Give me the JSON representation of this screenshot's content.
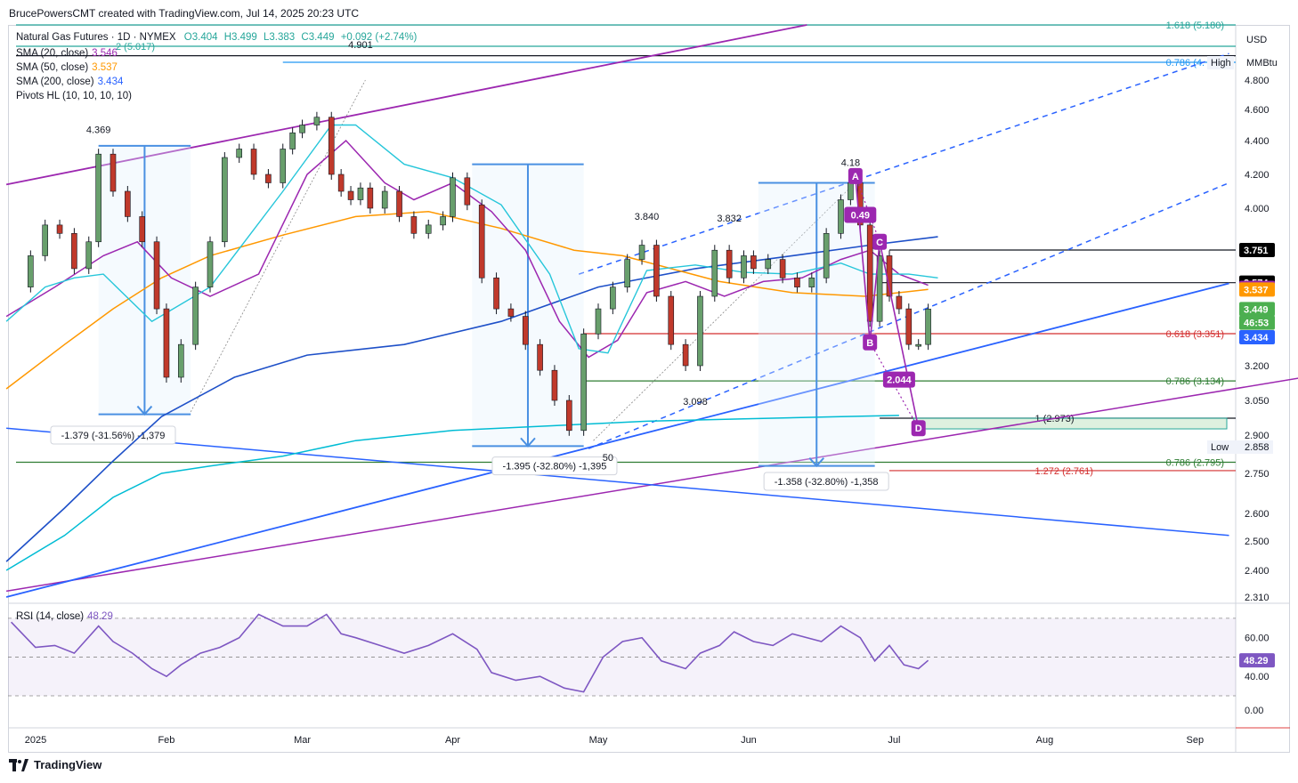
{
  "header": {
    "created_by": "BrucePowersCMT created with TradingView.com, Jul 14, 2025 20:23 UTC"
  },
  "symbol": {
    "name": "Natural Gas Futures · 1D · NYMEX",
    "open": "O3.404",
    "high": "H3.499",
    "low": "L3.383",
    "close": "C3.449",
    "change": "+0.092 (+2.74%)"
  },
  "indicators": [
    {
      "label": "SMA (20, close)",
      "value": "3.546",
      "color": "#9c27b0"
    },
    {
      "label": "SMA (50, close)",
      "value": "3.537",
      "color": "#ff9800"
    },
    {
      "label": "SMA (200, close)",
      "value": "3.434",
      "color": "#2962ff"
    },
    {
      "label": "Pivots HL (10, 10, 10, 10)",
      "value": "",
      "color": "#131722"
    }
  ],
  "axis": {
    "currency": "USD",
    "unit": "MMBtu",
    "ticks": [
      {
        "label": "4.800",
        "v": 4.8
      },
      {
        "label": "4.600",
        "v": 4.6
      },
      {
        "label": "4.400",
        "v": 4.4
      },
      {
        "label": "4.200",
        "v": 4.2
      },
      {
        "label": "4.000",
        "v": 4.0
      },
      {
        "label": "3.200",
        "v": 3.2
      },
      {
        "label": "3.050",
        "v": 3.05
      },
      {
        "label": "2.900",
        "v": 2.9
      },
      {
        "label": "2.750",
        "v": 2.75
      },
      {
        "label": "2.600",
        "v": 2.6
      },
      {
        "label": "2.500",
        "v": 2.5
      },
      {
        "label": "2.400",
        "v": 2.4
      },
      {
        "label": "2.310",
        "v": 2.31
      }
    ],
    "high_tag": "High",
    "low_tag": "Low",
    "low_value": "2.858",
    "price_tags": [
      {
        "label": "3.751",
        "v": 3.751,
        "bg": "#000000",
        "fg": "#ffffff"
      },
      {
        "label": "3.574",
        "v": 3.574,
        "bg": "#000000",
        "fg": "#ffffff"
      },
      {
        "label": "3.546",
        "v": 3.546,
        "bg": "#9c27b0",
        "fg": "#ffffff"
      },
      {
        "label": "3.537",
        "v": 3.537,
        "bg": "#ff9800",
        "fg": "#ffffff"
      },
      {
        "label": "3.449",
        "v": 3.449,
        "bg": "#4caf50",
        "fg": "#ffffff"
      },
      {
        "label": "46:53",
        "v": 3.395,
        "bg": "#4caf50",
        "fg": "#ffffff"
      },
      {
        "label": "3.434",
        "v": 3.334,
        "bg": "#2962ff",
        "fg": "#ffffff"
      }
    ]
  },
  "time_axis": [
    {
      "label": "2025",
      "d": 0
    },
    {
      "label": "Feb",
      "d": 31
    },
    {
      "label": "Mar",
      "d": 59
    },
    {
      "label": "Apr",
      "d": 90
    },
    {
      "label": "May",
      "d": 120
    },
    {
      "label": "Jun",
      "d": 151
    },
    {
      "label": "Jul",
      "d": 181
    },
    {
      "label": "Aug",
      "d": 212
    },
    {
      "label": "Sep",
      "d": 243
    }
  ],
  "annotations": {
    "pivots": [
      {
        "label": "4.369",
        "d": 17,
        "v": 4.45
      },
      {
        "label": "4.901",
        "d": 71,
        "v": 5.0
      },
      {
        "label": "3.840",
        "d": 130,
        "v": 3.93
      },
      {
        "label": "3.832",
        "d": 147,
        "v": 3.92
      },
      {
        "label": "3.098",
        "d": 140,
        "v": 3.03
      },
      {
        "label": "4.18",
        "d": 172,
        "v": 4.25
      },
      {
        "label": "50",
        "d": 122,
        "v": 2.8
      }
    ],
    "measures": [
      {
        "label": "-1.379 (-31.56%) -1,379",
        "d": 20,
        "v": 2.9
      },
      {
        "label": "-1.395 (-32.80%) -1,395",
        "d": 111,
        "v": 2.78
      },
      {
        "label": "-1.358 (-32.80%) -1,358",
        "d": 167,
        "v": 2.72
      }
    ],
    "fib_labels": [
      {
        "label": "1.618 (5.180)",
        "v": 5.18,
        "color": "#26a69a"
      },
      {
        "label": "2 (5.017)",
        "v": 5.017,
        "color": "#26a69a"
      },
      {
        "label": "0.786 (4.",
        "v": 4.87,
        "color": "#2196f3"
      },
      {
        "label": "0.618 (3.351)",
        "v": 3.351,
        "color": "#d32f2f"
      },
      {
        "label": "0.786 (3.134)",
        "v": 3.134,
        "color": "#2e7d32"
      },
      {
        "label": "1 (2.973)",
        "v": 2.973,
        "color": "#131722"
      },
      {
        "label": "0.786 (2.795)",
        "v": 2.795,
        "color": "#2e7d32"
      },
      {
        "label": "1.272 (2.761)",
        "v": 2.761,
        "color": "#d32f2f"
      }
    ],
    "abcd": [
      {
        "label": "A",
        "d": 173,
        "v": 4.19
      },
      {
        "label": "B",
        "d": 176,
        "v": 3.31
      },
      {
        "label": "C",
        "d": 178,
        "v": 3.8
      },
      {
        "label": "D",
        "d": 186,
        "v": 2.93
      }
    ],
    "ratios": [
      {
        "label": "0.49",
        "d": 174,
        "v": 3.96
      },
      {
        "label": "2.044",
        "d": 182,
        "v": 3.14
      }
    ]
  },
  "rsi": {
    "label": "RSI (14, close)",
    "value": "48.29",
    "ticks": [
      {
        "label": "60.00",
        "v": 60
      },
      {
        "label": "40.00",
        "v": 40
      },
      {
        "label": "0.00",
        "v": 0
      }
    ]
  },
  "footer": {
    "brand": "TradingView"
  },
  "chart_data": {
    "type": "line",
    "title": "",
    "xlabel": "",
    "ylabel": "",
    "ylim": [
      2.31,
      5.2
    ],
    "x_note_start": "2025",
    "series": [
      {
        "name": "",
        "x": [
          0,
          3,
          6,
          9,
          12,
          15,
          17,
          20,
          23,
          26,
          29,
          31,
          34,
          37,
          40,
          43,
          46,
          49,
          52,
          55,
          57,
          59,
          62,
          65,
          67,
          69,
          71,
          73,
          76,
          79,
          82,
          85,
          88,
          90,
          93,
          96,
          99,
          102,
          105,
          108,
          111,
          114,
          117,
          120,
          123,
          126,
          129,
          132,
          135,
          138,
          141,
          144,
          147,
          150,
          152,
          155,
          158,
          161,
          164,
          167,
          170,
          172,
          174,
          176,
          178,
          180,
          182,
          184,
          186,
          188
        ],
        "values": [
          3.55,
          3.72,
          3.9,
          3.85,
          3.65,
          3.8,
          4.32,
          4.1,
          3.95,
          3.8,
          3.45,
          3.15,
          3.3,
          3.55,
          3.8,
          4.3,
          4.35,
          4.2,
          4.15,
          4.35,
          4.45,
          4.5,
          4.55,
          4.2,
          4.1,
          4.05,
          4.12,
          4.0,
          4.1,
          3.95,
          3.85,
          3.9,
          3.95,
          4.18,
          4.02,
          3.6,
          3.45,
          3.42,
          3.3,
          3.18,
          3.05,
          2.92,
          3.35,
          3.45,
          3.55,
          3.7,
          3.78,
          3.5,
          3.3,
          3.2,
          3.5,
          3.75,
          3.6,
          3.72,
          3.65,
          3.7,
          3.6,
          3.55,
          3.6,
          3.85,
          4.05,
          4.15,
          3.9,
          3.4,
          3.72,
          3.5,
          3.45,
          3.3,
          3.3,
          3.449
        ]
      }
    ]
  }
}
